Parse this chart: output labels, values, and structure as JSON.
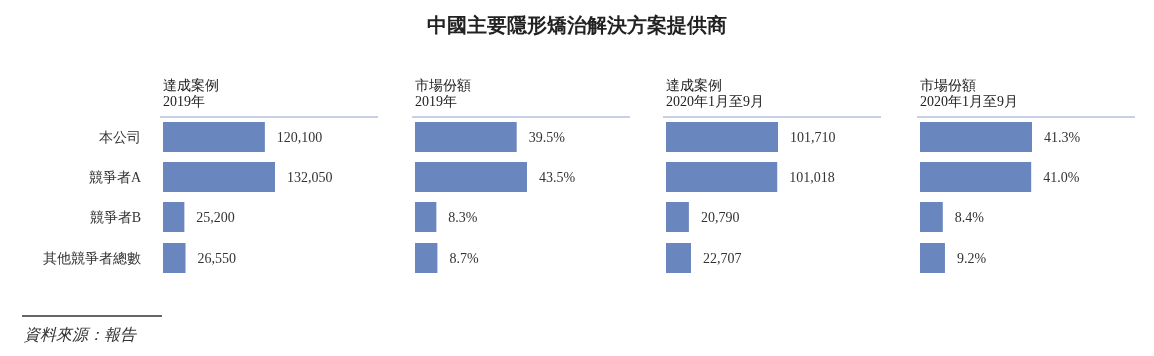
{
  "chart_data": [
    {
      "type": "other",
      "title": "中國主要隱形矯治解決方案提供商",
      "annotations": [
        "資料來源：報告"
      ]
    },
    {
      "type": "bar",
      "orientation": "horizontal",
      "title": "達成案例",
      "subtitle": "2019年",
      "categories": [
        "本公司",
        "競爭者A",
        "競爭者B",
        "其他競爭者總數"
      ],
      "tick_labels": "y",
      "color": "#6a86bf",
      "values": [
        120100,
        132050,
        25200,
        26550
      ],
      "value_labels": [
        "120,100",
        "132,050",
        "25,200",
        "26,550"
      ]
    },
    {
      "type": "bar",
      "orientation": "horizontal",
      "title": "市場份額",
      "subtitle": "2019年",
      "categories": [
        null,
        null,
        null,
        null
      ],
      "color": "#6a86bf",
      "values": [
        39.5,
        43.5,
        8.3,
        8.7
      ],
      "value_labels": [
        "39.5%",
        "43.5%",
        "8.3%",
        "8.7%"
      ]
    },
    {
      "type": "bar",
      "orientation": "horizontal",
      "title": "達成案例",
      "subtitle": "2020年1月至9月",
      "categories": [
        null,
        null,
        null,
        null
      ],
      "color": "#6a86bf",
      "values": [
        101710,
        101018,
        20790,
        22707
      ],
      "value_labels": [
        "101,710",
        "101,018",
        "20,790",
        "22,707"
      ]
    },
    {
      "type": "bar",
      "orientation": "horizontal",
      "title": "市場份額",
      "subtitle": "2020年1月至9月",
      "categories": [
        null,
        null,
        null,
        null
      ],
      "color": "#6a86bf",
      "values": [
        41.3,
        41.0,
        8.4,
        9.2
      ],
      "value_labels": [
        "41.3%",
        "41.0%",
        "8.4%",
        "9.2%"
      ]
    }
  ]
}
